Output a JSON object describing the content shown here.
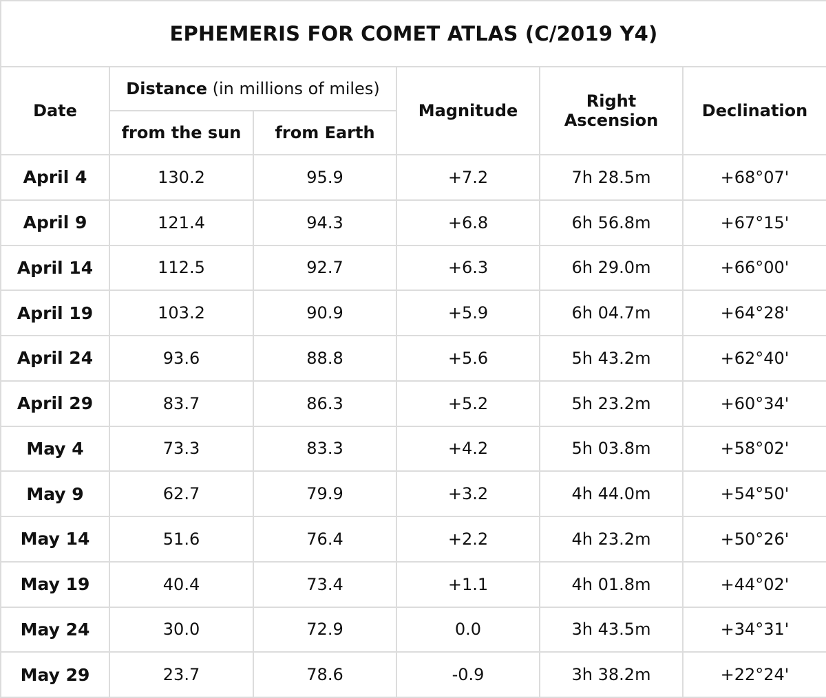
{
  "title": "EPHEMERIS FOR COMET ATLAS (C/2019 Y4)",
  "headers": {
    "date": "Date",
    "distance_bold": "Distance",
    "distance_unit": " (in millions of miles)",
    "from_sun": "from the sun",
    "from_earth": "from Earth",
    "magnitude": "Magnitude",
    "right_ascension_line1": "Right",
    "right_ascension_line2": "Ascension",
    "declination": "Declination"
  },
  "rows": [
    {
      "date": "April 4",
      "sun": "130.2",
      "earth": "95.9",
      "mag": "+7.2",
      "ra": "7h 28.5m",
      "dec": "+68°07'"
    },
    {
      "date": "April 9",
      "sun": "121.4",
      "earth": "94.3",
      "mag": "+6.8",
      "ra": "6h 56.8m",
      "dec": "+67°15'"
    },
    {
      "date": "April 14",
      "sun": "112.5",
      "earth": "92.7",
      "mag": "+6.3",
      "ra": "6h 29.0m",
      "dec": "+66°00'"
    },
    {
      "date": "April 19",
      "sun": "103.2",
      "earth": "90.9",
      "mag": "+5.9",
      "ra": "6h 04.7m",
      "dec": "+64°28'"
    },
    {
      "date": "April 24",
      "sun": "93.6",
      "earth": "88.8",
      "mag": "+5.6",
      "ra": "5h 43.2m",
      "dec": "+62°40'"
    },
    {
      "date": "April 29",
      "sun": "83.7",
      "earth": "86.3",
      "mag": "+5.2",
      "ra": "5h 23.2m",
      "dec": "+60°34'"
    },
    {
      "date": "May 4",
      "sun": "73.3",
      "earth": "83.3",
      "mag": "+4.2",
      "ra": "5h 03.8m",
      "dec": "+58°02'"
    },
    {
      "date": "May 9",
      "sun": "62.7",
      "earth": "79.9",
      "mag": "+3.2",
      "ra": "4h 44.0m",
      "dec": "+54°50'"
    },
    {
      "date": "May 14",
      "sun": "51.6",
      "earth": "76.4",
      "mag": "+2.2",
      "ra": "4h 23.2m",
      "dec": "+50°26'"
    },
    {
      "date": "May 19",
      "sun": "40.4",
      "earth": "73.4",
      "mag": "+1.1",
      "ra": "4h 01.8m",
      "dec": "+44°02'"
    },
    {
      "date": "May 24",
      "sun": "30.0",
      "earth": "72.9",
      "mag": "0.0",
      "ra": "3h 43.5m",
      "dec": "+34°31'"
    },
    {
      "date": "May 29",
      "sun": "23.7",
      "earth": "78.6",
      "mag": "-0.9",
      "ra": "3h 38.2m",
      "dec": "+22°24'"
    }
  ],
  "colors": {
    "border": "#dcdcdc",
    "text": "#111111",
    "background": "#ffffff"
  }
}
